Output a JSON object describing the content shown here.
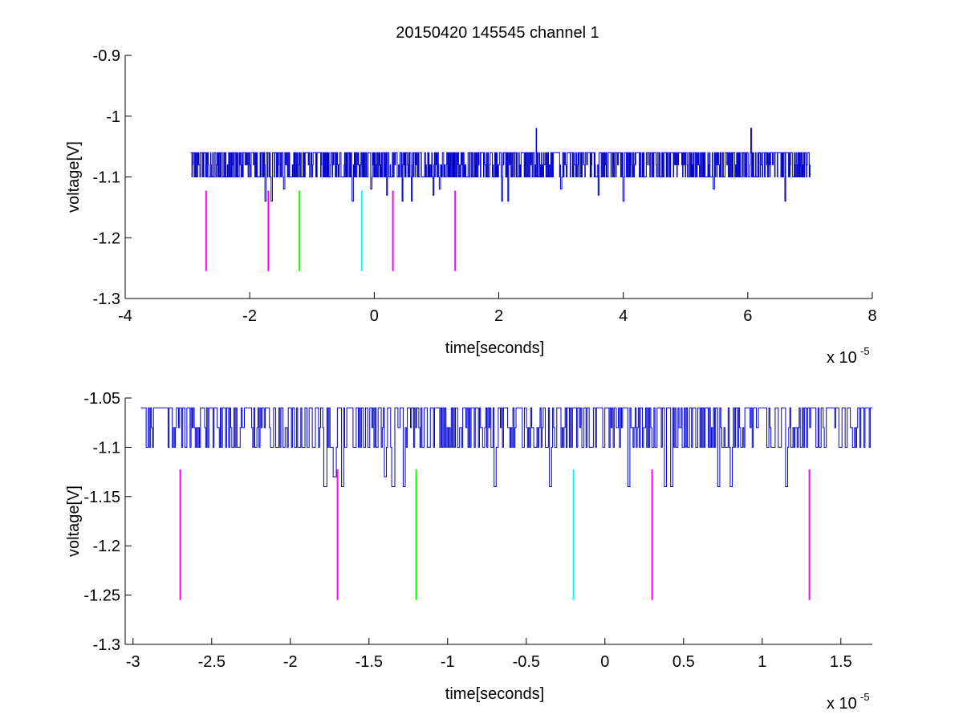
{
  "figure": {
    "title": "20150420 145545 channel 1"
  },
  "chart_data": [
    {
      "type": "line",
      "title": "20150420 145545 channel 1",
      "xlabel": "time[seconds]",
      "ylabel": "voltage[V]",
      "x_exponent_label": "x 10",
      "x_exponent_power": "-5",
      "xlim": [
        -4,
        8
      ],
      "ylim": [
        -1.3,
        -0.9
      ],
      "xticks": [
        -4,
        -2,
        0,
        2,
        4,
        6,
        8
      ],
      "xtick_labels": [
        "-4",
        "-2",
        "0",
        "2",
        "4",
        "6",
        "8"
      ],
      "yticks": [
        -1.3,
        -1.2,
        -1.1,
        -1.0,
        -0.9
      ],
      "ytick_labels": [
        "-1.3",
        "-1.2",
        "-1.1",
        "-1",
        "-0.9"
      ],
      "grid": false,
      "series": [
        {
          "color": "#0000cc",
          "x_start": -2.95,
          "x_end": 7.0,
          "baseline": -1.1,
          "high_level": -1.06,
          "low_dips": [
            [
              -1.75,
              -1.14
            ],
            [
              -1.65,
              -1.14
            ],
            [
              -1.45,
              -1.12
            ],
            [
              -0.35,
              -1.14
            ],
            [
              -0.05,
              -1.12
            ],
            [
              0.2,
              -1.13
            ],
            [
              0.45,
              -1.14
            ],
            [
              0.6,
              -1.14
            ],
            [
              0.95,
              -1.13
            ],
            [
              1.05,
              -1.12
            ],
            [
              2.05,
              -1.14
            ],
            [
              2.15,
              -1.14
            ],
            [
              3.0,
              -1.12
            ],
            [
              3.6,
              -1.13
            ],
            [
              4.0,
              -1.14
            ],
            [
              5.45,
              -1.12
            ],
            [
              6.6,
              -1.14
            ]
          ],
          "spikes": [
            [
              2.6,
              -1.02
            ],
            [
              6.05,
              -1.02
            ]
          ]
        }
      ],
      "markers": [
        {
          "x": -2.7,
          "y_top": -1.1225,
          "y_bottom": -1.255,
          "color": "#ff00ff"
        },
        {
          "x": -1.7,
          "y_top": -1.1225,
          "y_bottom": -1.255,
          "color": "#ff00ff"
        },
        {
          "x": -1.2,
          "y_top": -1.1225,
          "y_bottom": -1.255,
          "color": "#00ff00"
        },
        {
          "x": -0.2,
          "y_top": -1.1225,
          "y_bottom": -1.255,
          "color": "#00ffff"
        },
        {
          "x": 0.3,
          "y_top": -1.1225,
          "y_bottom": -1.255,
          "color": "#ff00ff"
        },
        {
          "x": 1.3,
          "y_top": -1.1225,
          "y_bottom": -1.255,
          "color": "#ff00ff"
        }
      ]
    },
    {
      "type": "line",
      "title": "",
      "xlabel": "time[seconds]",
      "ylabel": "voltage[V]",
      "x_exponent_label": "x 10",
      "x_exponent_power": "-5",
      "xlim": [
        -3.05,
        1.7
      ],
      "ylim": [
        -1.3,
        -1.05
      ],
      "xticks": [
        -3,
        -2.5,
        -2,
        -1.5,
        -1,
        -0.5,
        0,
        0.5,
        1,
        1.5
      ],
      "xtick_labels": [
        "-3",
        "-2.5",
        "-2",
        "-1.5",
        "-1",
        "-0.5",
        "0",
        "0.5",
        "1",
        "1.5"
      ],
      "yticks": [
        -1.3,
        -1.25,
        -1.2,
        -1.15,
        -1.1,
        -1.05
      ],
      "ytick_labels": [
        "-1.3",
        "-1.25",
        "-1.2",
        "-1.15",
        "-1.1",
        "-1.05"
      ],
      "grid": false,
      "series": [
        {
          "color": "#0000cc",
          "x_start": -2.95,
          "x_end": 1.7,
          "baseline": -1.1,
          "high_level": -1.06,
          "low_dips": [
            [
              -1.78,
              -1.14
            ],
            [
              -1.72,
              -1.13
            ],
            [
              -1.67,
              -1.14
            ],
            [
              -1.4,
              -1.13
            ],
            [
              -1.35,
              -1.14
            ],
            [
              -1.28,
              -1.14
            ],
            [
              -0.7,
              -1.14
            ],
            [
              -0.35,
              -1.14
            ],
            [
              0.15,
              -1.14
            ],
            [
              0.38,
              -1.14
            ],
            [
              0.42,
              -1.14
            ],
            [
              0.72,
              -1.14
            ],
            [
              0.8,
              -1.14
            ],
            [
              1.15,
              -1.14
            ]
          ],
          "spikes": []
        }
      ],
      "markers": [
        {
          "x": -2.7,
          "y_top": -1.1225,
          "y_bottom": -1.255,
          "color": "#ff00ff"
        },
        {
          "x": -1.7,
          "y_top": -1.1225,
          "y_bottom": -1.255,
          "color": "#ff00ff"
        },
        {
          "x": -1.2,
          "y_top": -1.1225,
          "y_bottom": -1.255,
          "color": "#00ff00"
        },
        {
          "x": -0.2,
          "y_top": -1.1225,
          "y_bottom": -1.255,
          "color": "#00ffff"
        },
        {
          "x": 0.3,
          "y_top": -1.1225,
          "y_bottom": -1.255,
          "color": "#ff00ff"
        },
        {
          "x": 1.3,
          "y_top": -1.1225,
          "y_bottom": -1.255,
          "color": "#ff00ff"
        }
      ]
    }
  ]
}
